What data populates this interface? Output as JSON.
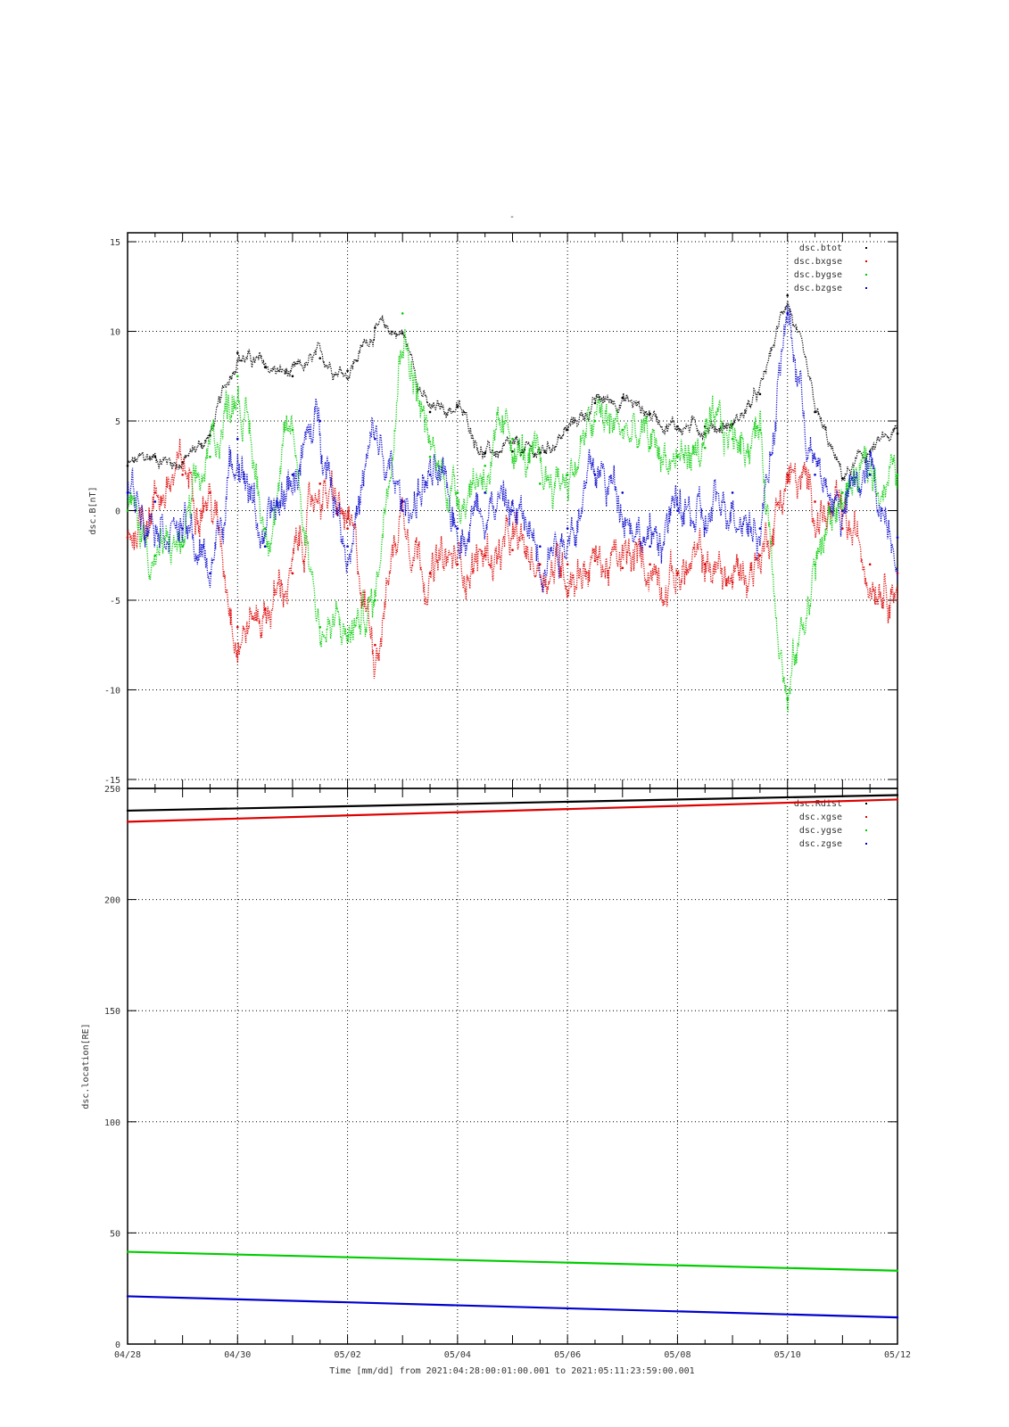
{
  "plot_title": "-",
  "x_axis": {
    "title": "Time [mm/dd]  from 2021:04:28:00:01:00.001  to  2021:05:11:23:59:00.001",
    "tick_labels": [
      "04/28",
      "04/30",
      "05/02",
      "05/04",
      "05/06",
      "05/08",
      "05/10",
      "05/12"
    ],
    "range_days": [
      0,
      14
    ]
  },
  "colors": {
    "black": "#000000",
    "red": "#dd0000",
    "green": "#00cc00",
    "blue": "#0000cc",
    "grid": "#000000"
  },
  "chart_data": [
    {
      "type": "scatter",
      "title": "",
      "xlabel": "",
      "ylabel": "dsc.B[nT]",
      "xlim": [
        "2021-04-28",
        "2021-05-12"
      ],
      "ylim": [
        -15.5,
        15.5
      ],
      "y_ticks": [
        15,
        10,
        5,
        0,
        -5,
        -10,
        -15
      ],
      "grid": true,
      "legend_position": "top-right",
      "x_dates": [
        "04/28",
        "04/28.5",
        "04/29",
        "04/29.5",
        "04/30",
        "04/30.5",
        "05/01",
        "05/01.5",
        "05/02",
        "05/02.5",
        "05/03",
        "05/03.5",
        "05/04",
        "05/04.5",
        "05/05",
        "05/05.5",
        "05/06",
        "05/06.5",
        "05/07",
        "05/07.5",
        "05/08",
        "05/08.5",
        "05/09",
        "05/09.5",
        "05/10",
        "05/10.5",
        "05/11",
        "05/11.5",
        "05/12"
      ],
      "x_days": [
        0,
        0.5,
        1,
        1.5,
        2,
        2.5,
        3,
        3.5,
        4,
        4.5,
        5,
        5.5,
        6,
        6.5,
        7,
        7.5,
        8,
        8.5,
        9,
        9.5,
        10,
        10.5,
        11,
        11.5,
        12,
        12.5,
        13,
        13.5,
        14
      ],
      "series": [
        {
          "name": "dsc.btot",
          "color": "black",
          "values": [
            2.5,
            3.0,
            2.7,
            4.2,
            8.8,
            8.0,
            7.5,
            8.5,
            7.8,
            10.2,
            9.9,
            5.5,
            5.8,
            3.2,
            3.3,
            3.2,
            4.5,
            6.0,
            6.3,
            5.4,
            4.7,
            4.7,
            4.8,
            6.5,
            12.0,
            5.5,
            1.8,
            3.3,
            4.3
          ]
        },
        {
          "name": "dsc.bxgse",
          "color": "red",
          "values": [
            -1.5,
            1.0,
            2.0,
            1.0,
            -6.5,
            -5.5,
            -3.5,
            1.5,
            -1.0,
            -7.5,
            0.5,
            -3.5,
            -3.0,
            -2.5,
            -2.2,
            -3.0,
            -3.0,
            -2.8,
            -3.2,
            -3.0,
            -3.5,
            -3.0,
            -4.0,
            -2.5,
            2.0,
            0.5,
            -1.0,
            -3.0,
            -3.5
          ]
        },
        {
          "name": "dsc.bygse",
          "color": "green",
          "values": [
            0.0,
            -2.5,
            -2.0,
            3.0,
            7.5,
            -1.0,
            4.5,
            -6.5,
            -7.0,
            -5.0,
            11.0,
            3.0,
            1.0,
            2.5,
            4.0,
            1.5,
            2.0,
            5.0,
            4.5,
            3.5,
            3.0,
            3.5,
            4.0,
            4.5,
            -10.5,
            -3.0,
            1.0,
            2.0,
            2.0
          ]
        },
        {
          "name": "dsc.bzgse",
          "color": "blue",
          "values": [
            1.0,
            0.5,
            -1.0,
            -3.5,
            4.0,
            -2.0,
            2.0,
            5.0,
            -2.0,
            4.0,
            0.0,
            2.0,
            -1.0,
            1.0,
            0.0,
            -2.0,
            -1.0,
            2.0,
            1.0,
            -2.0,
            0.0,
            -1.0,
            1.0,
            -1.0,
            11.0,
            2.0,
            0.0,
            2.0,
            -1.5
          ]
        }
      ]
    },
    {
      "type": "scatter",
      "title": "",
      "xlabel": "",
      "ylabel": "dsc.location[RE]",
      "xlim": [
        "2021-04-28",
        "2021-05-12"
      ],
      "ylim": [
        0,
        250
      ],
      "y_ticks": [
        250,
        200,
        150,
        100,
        50,
        0
      ],
      "grid": true,
      "legend_position": "top-right",
      "series": [
        {
          "name": "dsc.Rdist",
          "color": "black",
          "x_days": [
            0,
            14
          ],
          "values": [
            240,
            247
          ]
        },
        {
          "name": "dsc.xgse",
          "color": "red",
          "x_days": [
            0,
            14
          ],
          "values": [
            235,
            245
          ]
        },
        {
          "name": "dsc.ygse",
          "color": "green",
          "x_days": [
            0,
            14
          ],
          "values": [
            41.5,
            33
          ]
        },
        {
          "name": "dsc.zgse",
          "color": "blue",
          "x_days": [
            0,
            14
          ],
          "values": [
            21.5,
            12
          ]
        }
      ]
    }
  ]
}
